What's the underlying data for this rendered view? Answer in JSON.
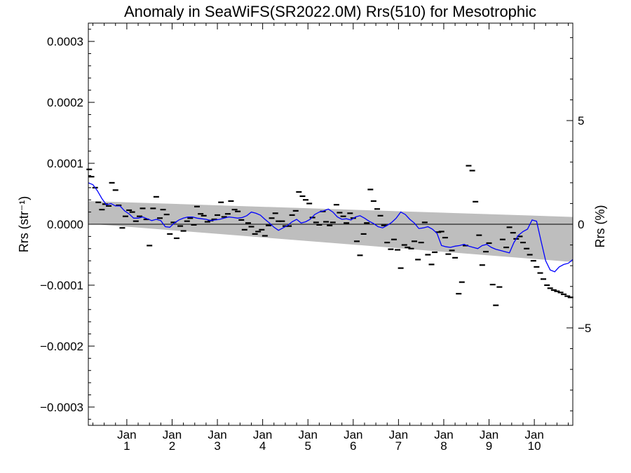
{
  "chart_data": {
    "type": "scatter",
    "title": "Anomaly in SeaWiFS(SR2022.0M) Rrs(510) for Mesotrophic",
    "ylabel": "Rrs (str⁻¹)",
    "ylabel_right": "Rrs (%)",
    "xlabel": "",
    "xlim": [
      0.15,
      10.85
    ],
    "ylim": [
      -0.00033,
      0.00033
    ],
    "ylim_right": [
      -9.7,
      9.7
    ],
    "x_ticks": [
      {
        "x": 1,
        "top": "Jan",
        "bottom": "1"
      },
      {
        "x": 2,
        "top": "Jan",
        "bottom": "2"
      },
      {
        "x": 3,
        "top": "Jan",
        "bottom": "3"
      },
      {
        "x": 4,
        "top": "Jan",
        "bottom": "4"
      },
      {
        "x": 5,
        "top": "Jan",
        "bottom": "5"
      },
      {
        "x": 6,
        "top": "Jan",
        "bottom": "6"
      },
      {
        "x": 7,
        "top": "Jan",
        "bottom": "7"
      },
      {
        "x": 8,
        "top": "Jan",
        "bottom": "8"
      },
      {
        "x": 9,
        "top": "Jan",
        "bottom": "9"
      },
      {
        "x": 10,
        "top": "Jan",
        "bottom": "10"
      }
    ],
    "y_ticks": [
      {
        "value": 0.0003,
        "label": "0.0003"
      },
      {
        "value": 0.0002,
        "label": "0.0002"
      },
      {
        "value": 0.0001,
        "label": "0.0001"
      },
      {
        "value": 0,
        "label": "0.0000"
      },
      {
        "value": -0.0001,
        "label": "−0.0001"
      },
      {
        "value": -0.0002,
        "label": "−0.0002"
      },
      {
        "value": -0.0003,
        "label": "−0.0003"
      }
    ],
    "y_right_ticks": [
      {
        "value": 5,
        "label": "5"
      },
      {
        "value": 0,
        "label": "0"
      },
      {
        "value": -5,
        "label": "−5"
      }
    ],
    "grid": false,
    "legend": "none",
    "colors": {
      "points": "#000000",
      "smooth_line": "#0000ff",
      "band": "#bebebe",
      "zero_line": "#000000"
    },
    "band": {
      "x": [
        0.15,
        10.85
      ],
      "upper": [
        3.8e-05,
        1.2e-05
      ],
      "lower": [
        1e-06,
        -6.2e-05
      ]
    },
    "series": [
      {
        "kind": "points",
        "x": [
          0.17,
          0.22,
          0.3,
          0.37,
          0.45,
          0.52,
          0.6,
          0.67,
          0.75,
          0.82,
          0.9,
          0.97,
          1.05,
          1.12,
          1.2,
          1.28,
          1.35,
          1.43,
          1.5,
          1.58,
          1.65,
          1.73,
          1.8,
          1.88,
          1.95,
          2.03,
          2.1,
          2.18,
          2.25,
          2.33,
          2.4,
          2.48,
          2.55,
          2.63,
          2.7,
          2.78,
          2.85,
          2.93,
          3.0,
          3.08,
          3.15,
          3.23,
          3.3,
          3.38,
          3.45,
          3.53,
          3.6,
          3.68,
          3.75,
          3.83,
          3.9,
          3.98,
          4.05,
          4.13,
          4.2,
          4.28,
          4.35,
          4.43,
          4.5,
          4.58,
          4.65,
          4.73,
          4.8,
          4.88,
          4.95,
          5.03,
          5.1,
          5.18,
          5.25,
          5.33,
          5.4,
          5.48,
          5.55,
          5.63,
          5.7,
          5.78,
          5.85,
          5.93,
          6.0,
          6.08,
          6.15,
          6.23,
          6.3,
          6.38,
          6.45,
          6.53,
          6.6,
          6.68,
          6.75,
          6.83,
          6.9,
          6.98,
          7.05,
          7.13,
          7.2,
          7.28,
          7.35,
          7.43,
          7.5,
          7.58,
          7.65,
          7.73,
          7.8,
          7.88,
          7.95,
          8.03,
          8.1,
          8.18,
          8.25,
          8.33,
          8.4,
          8.48,
          8.55,
          8.63,
          8.7,
          8.78,
          8.85,
          8.93,
          9.0,
          9.08,
          9.15,
          9.23,
          9.3,
          9.38,
          9.45,
          9.53,
          9.6,
          9.68,
          9.75,
          9.83,
          9.9,
          9.98,
          10.05,
          10.13,
          10.2,
          10.28,
          10.35,
          10.43,
          10.5,
          10.58,
          10.65,
          10.73,
          10.8
        ],
        "y": [
          9e-05,
          7.8e-05,
          6e-05,
          3.6e-05,
          2.4e-05,
          3.3e-05,
          3e-05,
          6.8e-05,
          5.6e-05,
          3.1e-05,
          -6e-06,
          1.3e-05,
          2.3e-05,
          2e-05,
          5e-06,
          1.3e-05,
          2.6e-05,
          8e-06,
          -3.5e-05,
          2.6e-05,
          4.5e-05,
          1e-05,
          2.4e-05,
          1.6e-05,
          -1.6e-05,
          3e-06,
          -2.3e-05,
          -3e-06,
          -1.1e-05,
          5e-06,
          1e-05,
          -1e-06,
          2.9e-05,
          1.7e-05,
          1.4e-05,
          4e-06,
          6e-06,
          8e-06,
          1.5e-05,
          3.6e-05,
          1.2e-05,
          1.7e-05,
          3.8e-05,
          2.4e-05,
          2.1e-05,
          7e-06,
          -9e-06,
          2e-06,
          -4e-06,
          -1.6e-05,
          -1.2e-05,
          -9e-06,
          -1.9e-05,
          -2e-06,
          1e-05,
          1.8e-05,
          5e-06,
          5e-06,
          -3e-06,
          -3e-06,
          1.5e-05,
          2.2e-05,
          5.3e-05,
          4.6e-05,
          4e-05,
          3.4e-05,
          1.1e-05,
          3e-06,
          -1e-06,
          2.1e-05,
          4e-06,
          -2e-06,
          3e-06,
          3.2e-05,
          1.9e-05,
          1.3e-05,
          2e-06,
          1.8e-05,
          1e-05,
          -2.8e-05,
          -5.1e-05,
          -1.6e-05,
          2e-06,
          5.7e-05,
          3.8e-05,
          2.5e-05,
          1.4e-05,
          -2e-06,
          -3e-05,
          -4.1e-05,
          -2.5e-05,
          -4.2e-05,
          -7.2e-05,
          -3.4e-05,
          -3.8e-05,
          -4e-05,
          -2.8e-05,
          -5.8e-05,
          -3e-05,
          3e-06,
          -5e-05,
          -6.6e-05,
          -4.6e-05,
          -1.3e-05,
          -1.2e-05,
          -2.2e-05,
          -4.9e-05,
          -4.3e-05,
          -5.5e-05,
          -0.000114,
          -9.5e-05,
          -3.5e-05,
          9.6e-05,
          8.8e-05,
          3.7e-05,
          -1.8e-05,
          -6.7e-05,
          -4.5e-05,
          -3.1e-05,
          -9.9e-05,
          -0.000133,
          -0.000103,
          -2.5e-05,
          -3.8e-05,
          -5e-06,
          -1.4e-05,
          -2.4e-05,
          -2e-05,
          -3e-05,
          -4e-05,
          -5e-05,
          -6e-05,
          -7e-05,
          -8e-05,
          -9e-05,
          -0.0001,
          -0.000105,
          -0.000108,
          -0.00011,
          -0.000112,
          -0.000115,
          -0.000118,
          -0.00012
        ]
      },
      {
        "kind": "smooth",
        "x": [
          0.15,
          0.25,
          0.35,
          0.45,
          0.55,
          0.65,
          0.75,
          0.85,
          0.95,
          1.05,
          1.15,
          1.25,
          1.35,
          1.45,
          1.55,
          1.65,
          1.75,
          1.85,
          1.95,
          2.05,
          2.15,
          2.25,
          2.35,
          2.45,
          2.55,
          2.65,
          2.75,
          2.85,
          2.95,
          3.05,
          3.15,
          3.25,
          3.35,
          3.45,
          3.55,
          3.65,
          3.75,
          3.85,
          3.95,
          4.05,
          4.15,
          4.25,
          4.35,
          4.45,
          4.55,
          4.65,
          4.75,
          4.85,
          4.95,
          5.05,
          5.15,
          5.25,
          5.35,
          5.45,
          5.55,
          5.65,
          5.75,
          5.85,
          5.95,
          6.05,
          6.15,
          6.25,
          6.35,
          6.45,
          6.55,
          6.65,
          6.75,
          6.85,
          6.95,
          7.05,
          7.15,
          7.25,
          7.35,
          7.45,
          7.55,
          7.65,
          7.75,
          7.85,
          7.95,
          8.05,
          8.15,
          8.25,
          8.35,
          8.45,
          8.55,
          8.65,
          8.75,
          8.85,
          8.95,
          9.05,
          9.15,
          9.25,
          9.35,
          9.45,
          9.55,
          9.65,
          9.75,
          9.85,
          9.95,
          10.05,
          10.15,
          10.25,
          10.35,
          10.45,
          10.55,
          10.65,
          10.75,
          10.85
        ],
        "y": [
          6.8e-05,
          6.5e-05,
          5.5e-05,
          4.2e-05,
          3.2e-05,
          3.4e-05,
          3e-05,
          3e-05,
          2.2e-05,
          1.7e-05,
          1e-05,
          1e-05,
          1.2e-05,
          9e-06,
          6e-06,
          8e-06,
          6e-06,
          -4e-06,
          -5e-06,
          2e-06,
          7e-06,
          1e-05,
          1.2e-05,
          1.2e-05,
          1e-05,
          9e-06,
          8e-06,
          6e-06,
          7e-06,
          8e-06,
          1e-05,
          1.2e-05,
          1.1e-05,
          1e-05,
          1.1e-05,
          1.4e-05,
          2e-05,
          1.8e-05,
          1.5e-05,
          8e-06,
          2e-06,
          -5e-06,
          -1e-05,
          -6e-06,
          -2e-06,
          4e-06,
          8e-06,
          2e-06,
          4e-06,
          8e-06,
          1.6e-05,
          2e-05,
          2.2e-05,
          2.5e-05,
          2e-05,
          1.2e-05,
          8e-06,
          9e-06,
          7e-06,
          1.2e-05,
          1.4e-05,
          1e-05,
          5e-06,
          1e-06,
          -4e-06,
          -6e-06,
          -2e-06,
          3e-06,
          1e-05,
          2e-05,
          1.6e-05,
          8e-06,
          2e-06,
          -7e-06,
          -6e-06,
          -4e-06,
          -8e-06,
          -1.5e-05,
          -3.5e-05,
          -3.7e-05,
          -3.8e-05,
          -3.6e-05,
          -3.5e-05,
          -3.3e-05,
          -3.6e-05,
          -3.8e-05,
          -4e-05,
          -3.5e-05,
          -3.3e-05,
          -3.8e-05,
          -4.1e-05,
          -4.3e-05,
          -4.5e-05,
          -4.7e-05,
          -3e-05,
          -1.8e-05,
          -1.2e-05,
          -8e-06,
          7e-06,
          5e-06,
          -2.8e-05,
          -6e-05,
          -7.5e-05,
          -7.8e-05,
          -7e-05,
          -6.6e-05,
          -6.4e-05,
          -5.8e-05
        ]
      }
    ]
  }
}
